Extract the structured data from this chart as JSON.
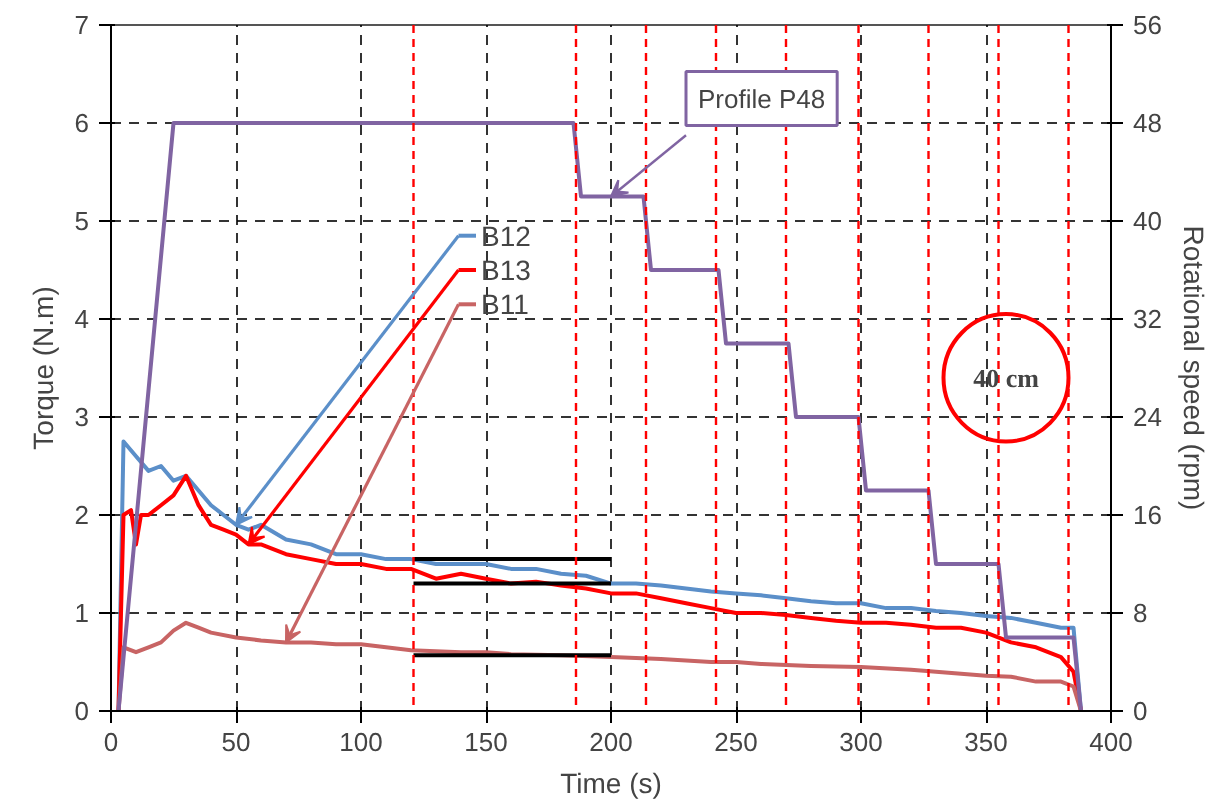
{
  "chart_data": {
    "type": "line",
    "xlabel": "Time (s)",
    "ylabel": "Torque (N.m)",
    "y2label": "Rotational speed (rpm)",
    "xlim": [
      0,
      400
    ],
    "xticks": [
      0,
      50,
      100,
      150,
      200,
      250,
      300,
      350,
      400
    ],
    "ylim": [
      0,
      7
    ],
    "yticks": [
      0,
      1,
      2,
      3,
      4,
      5,
      6,
      7
    ],
    "y2lim": [
      0,
      56
    ],
    "y2ticks": [
      0,
      8,
      16,
      24,
      32,
      40,
      48,
      56
    ],
    "grid": true,
    "legend": "top",
    "line_style": "solid",
    "series": [
      {
        "name": "B12",
        "color": "#5b8fc9",
        "x": [
          3,
          5,
          10,
          15,
          20,
          25,
          30,
          35,
          40,
          45,
          50,
          55,
          60,
          70,
          80,
          90,
          100,
          110,
          120,
          130,
          140,
          150,
          160,
          170,
          180,
          190,
          200,
          210,
          220,
          230,
          240,
          250,
          260,
          270,
          280,
          290,
          300,
          310,
          320,
          330,
          340,
          350,
          360,
          370,
          380,
          385,
          388
        ],
        "values": [
          0,
          2.75,
          2.6,
          2.45,
          2.5,
          2.35,
          2.4,
          2.25,
          2.1,
          2.0,
          1.9,
          1.85,
          1.9,
          1.75,
          1.7,
          1.6,
          1.6,
          1.55,
          1.55,
          1.5,
          1.5,
          1.5,
          1.45,
          1.45,
          1.4,
          1.38,
          1.3,
          1.3,
          1.28,
          1.25,
          1.22,
          1.2,
          1.18,
          1.15,
          1.12,
          1.1,
          1.1,
          1.05,
          1.05,
          1.02,
          1.0,
          0.97,
          0.95,
          0.9,
          0.85,
          0.85,
          0
        ]
      },
      {
        "name": "B13",
        "color": "#ff0000",
        "x": [
          3,
          5,
          8,
          10,
          12,
          15,
          20,
          25,
          30,
          35,
          40,
          45,
          50,
          55,
          60,
          70,
          80,
          90,
          100,
          110,
          120,
          130,
          140,
          150,
          160,
          170,
          180,
          190,
          200,
          210,
          220,
          230,
          240,
          250,
          260,
          270,
          280,
          290,
          300,
          310,
          320,
          330,
          340,
          350,
          360,
          370,
          380,
          385,
          388
        ],
        "values": [
          0,
          2.0,
          2.05,
          1.7,
          2.0,
          2.0,
          2.1,
          2.2,
          2.4,
          2.1,
          1.9,
          1.85,
          1.8,
          1.7,
          1.7,
          1.6,
          1.55,
          1.5,
          1.5,
          1.45,
          1.45,
          1.35,
          1.4,
          1.35,
          1.3,
          1.32,
          1.28,
          1.25,
          1.2,
          1.2,
          1.15,
          1.1,
          1.05,
          1.0,
          1.0,
          0.98,
          0.95,
          0.92,
          0.9,
          0.9,
          0.88,
          0.85,
          0.85,
          0.8,
          0.7,
          0.65,
          0.55,
          0.4,
          0
        ]
      },
      {
        "name": "B11",
        "color": "#c86464",
        "x": [
          3,
          5,
          10,
          15,
          20,
          25,
          30,
          35,
          40,
          50,
          60,
          70,
          80,
          90,
          100,
          120,
          140,
          150,
          160,
          180,
          200,
          220,
          240,
          250,
          260,
          280,
          300,
          320,
          340,
          350,
          360,
          370,
          380,
          385,
          388
        ],
        "values": [
          0,
          0.65,
          0.6,
          0.65,
          0.7,
          0.82,
          0.9,
          0.85,
          0.8,
          0.75,
          0.72,
          0.7,
          0.7,
          0.68,
          0.68,
          0.62,
          0.6,
          0.6,
          0.58,
          0.57,
          0.55,
          0.53,
          0.5,
          0.5,
          0.48,
          0.46,
          0.45,
          0.42,
          0.38,
          0.36,
          0.35,
          0.3,
          0.3,
          0.25,
          0
        ]
      },
      {
        "name": "Profile P48",
        "color": "#8064a2",
        "axis": "y2",
        "x": [
          3,
          25,
          185,
          188,
          213,
          216,
          243,
          246,
          271,
          274,
          299,
          302,
          327,
          330,
          355,
          358,
          385,
          388
        ],
        "values": [
          0,
          48,
          48,
          42,
          42,
          36,
          36,
          30,
          30,
          24,
          24,
          18,
          18,
          12,
          12,
          6,
          6,
          0
        ]
      },
      {
        "color": "#000000",
        "x": [
          121,
          200
        ],
        "values": [
          1.55,
          1.55
        ]
      },
      {
        "color": "#000000",
        "x": [
          121,
          200
        ],
        "values": [
          1.3,
          1.3
        ]
      },
      {
        "color": "#000000",
        "x": [
          121,
          200
        ],
        "values": [
          0.57,
          0.57
        ]
      }
    ],
    "ref_lines": [
      {
        "axis": "x",
        "value": 121,
        "color": "#ff0000",
        "line_style": "dashed"
      },
      {
        "axis": "x",
        "value": 186,
        "color": "#ff0000",
        "line_style": "dashed"
      },
      {
        "axis": "x",
        "value": 214,
        "color": "#ff0000",
        "line_style": "dashed"
      },
      {
        "axis": "x",
        "value": 242,
        "color": "#ff0000",
        "line_style": "dashed"
      },
      {
        "axis": "x",
        "value": 270,
        "color": "#ff0000",
        "line_style": "dashed"
      },
      {
        "axis": "x",
        "value": 299,
        "color": "#ff0000",
        "line_style": "dashed"
      },
      {
        "axis": "x",
        "value": 327,
        "color": "#ff0000",
        "line_style": "dashed"
      },
      {
        "axis": "x",
        "value": 355,
        "color": "#ff0000",
        "line_style": "dashed"
      },
      {
        "axis": "x",
        "value": 383,
        "color": "#ff0000",
        "line_style": "dashed"
      }
    ],
    "annotations": [
      "40 cm"
    ]
  }
}
